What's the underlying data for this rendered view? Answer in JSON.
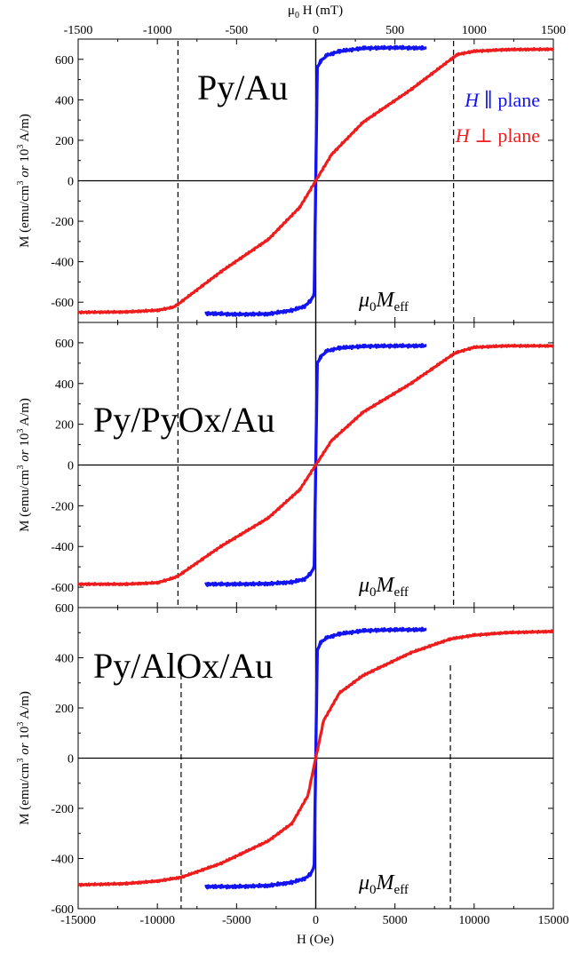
{
  "colors": {
    "parallel": "#1414f0",
    "perpendicular": "#ee1c1c",
    "axis": "#000000"
  },
  "top_axis": {
    "label": "μ0 H (mT)",
    "label_main": "μ",
    "label_sub": "0",
    "label_rest": " H (mT)",
    "ticks": [
      "-1500",
      "-1000",
      "-500",
      "0",
      "500",
      "1000",
      "1500"
    ]
  },
  "bottom_axis": {
    "label": "H (Oe)",
    "ticks": [
      "-15000",
      "-10000",
      "-5000",
      "0",
      "5000",
      "10000",
      "15000"
    ]
  },
  "y_axis_label": {
    "main": "M (emu/cm",
    "sup1": "3",
    "italic": " or ",
    "mid": "10",
    "sup2": "3",
    "end": " A/m)"
  },
  "legend": {
    "parallel": {
      "symbol": "H",
      "text": "∥ plane"
    },
    "perpendicular": {
      "symbol": "H",
      "text": "⊥ plane"
    }
  },
  "annotation": {
    "mu": "μ",
    "sub0": "0",
    "M": "M",
    "eff": "eff"
  },
  "chart_data": [
    {
      "type": "line",
      "title": "Py/Au",
      "xlabel": "H (Oe)",
      "xlim": [
        -15000,
        15000
      ],
      "ylim": [
        -700,
        700
      ],
      "yticks": [
        "-600",
        "-400",
        "-200",
        "0",
        "200",
        "400",
        "600"
      ],
      "ms": 650,
      "meff_line_x": [
        -8700,
        8700
      ],
      "series": [
        {
          "name": "H ∥ plane",
          "x": [
            -7000,
            -5000,
            -3000,
            -1500,
            -700,
            -300,
            -100,
            0,
            100,
            300,
            700,
            1500,
            3000,
            5000,
            7000
          ],
          "y": [
            -655,
            -660,
            -658,
            -640,
            -620,
            -590,
            -560,
            0,
            560,
            590,
            620,
            640,
            655,
            658,
            655
          ]
        },
        {
          "name": "H ⊥ plane",
          "x": [
            -15000,
            -12000,
            -10000,
            -9000,
            -8700,
            -6000,
            -3000,
            -1000,
            0,
            1000,
            3000,
            6000,
            8700,
            9000,
            10000,
            12000,
            15000
          ],
          "y": [
            -650,
            -648,
            -640,
            -625,
            -610,
            -450,
            -290,
            -130,
            0,
            130,
            290,
            450,
            610,
            625,
            640,
            648,
            650
          ]
        }
      ]
    },
    {
      "type": "line",
      "title": "Py/PyOx/Au",
      "xlabel": "H (Oe)",
      "xlim": [
        -15000,
        15000
      ],
      "ylim": [
        -700,
        700
      ],
      "yticks": [
        "-600",
        "-400",
        "-200",
        "0",
        "200",
        "400",
        "600"
      ],
      "ms": 585,
      "meff_line_x": [
        -8700,
        8700
      ],
      "series": [
        {
          "name": "H ∥ plane",
          "x": [
            -7000,
            -5000,
            -3000,
            -1500,
            -700,
            -300,
            -100,
            0,
            100,
            300,
            700,
            1500,
            3000,
            5000,
            7000
          ],
          "y": [
            -585,
            -585,
            -583,
            -575,
            -560,
            -530,
            -500,
            0,
            500,
            530,
            560,
            575,
            583,
            585,
            585
          ]
        },
        {
          "name": "H ⊥ plane",
          "x": [
            -15000,
            -12000,
            -10000,
            -9000,
            -8700,
            -6000,
            -3000,
            -1000,
            0,
            1000,
            3000,
            6000,
            8700,
            9000,
            10000,
            12000,
            15000
          ],
          "y": [
            -585,
            -585,
            -578,
            -555,
            -545,
            -400,
            -260,
            -120,
            0,
            120,
            260,
            400,
            545,
            555,
            578,
            585,
            585
          ]
        }
      ]
    },
    {
      "type": "line",
      "title": "Py/AlOx/Au",
      "xlabel": "H (Oe)",
      "xlim": [
        -15000,
        15000
      ],
      "ylim": [
        -600,
        600
      ],
      "yticks": [
        "-600",
        "-400",
        "-200",
        "0",
        "200",
        "400",
        "600"
      ],
      "ms": 510,
      "meff_line_x": [
        -8500,
        8500
      ],
      "series": [
        {
          "name": "H ∥ plane",
          "x": [
            -7000,
            -5000,
            -3000,
            -1500,
            -700,
            -300,
            -100,
            0,
            100,
            300,
            700,
            1500,
            3000,
            5000,
            7000
          ],
          "y": [
            -512,
            -512,
            -508,
            -495,
            -480,
            -460,
            -430,
            0,
            430,
            460,
            480,
            495,
            508,
            512,
            512
          ]
        },
        {
          "name": "H ⊥ plane",
          "x": [
            -15000,
            -12000,
            -10000,
            -8500,
            -6000,
            -3000,
            -1500,
            -500,
            0,
            500,
            1500,
            3000,
            6000,
            8500,
            10000,
            12000,
            15000
          ],
          "y": [
            -505,
            -500,
            -490,
            -475,
            -420,
            -330,
            -260,
            -150,
            0,
            150,
            260,
            330,
            420,
            475,
            490,
            500,
            505
          ]
        }
      ]
    }
  ]
}
